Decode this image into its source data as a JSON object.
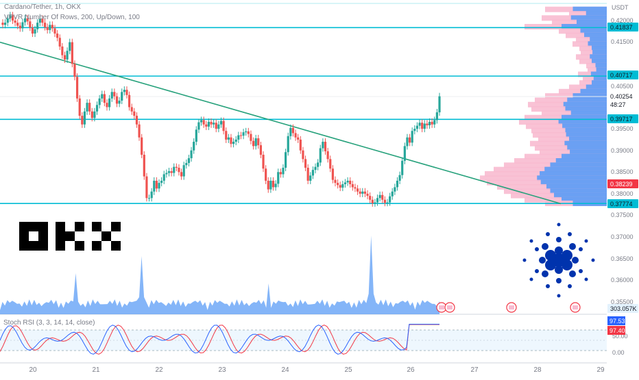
{
  "header": {
    "symbol_line": "Cardano/Tether, 1h, OKX",
    "vpvr_line": "VPVR Number Of Rows, 200, Up/Down, 100"
  },
  "brand": {
    "exchange_logo": "OKX",
    "coin_logo": "cardano-logo-icon"
  },
  "price_axis": {
    "currency": "USDT",
    "ticks": [
      "0.42000",
      "0.41500",
      "0.40500",
      "0.39500",
      "0.39000",
      "0.38500",
      "0.38000",
      "0.37500",
      "0.37000",
      "0.36500",
      "0.36000",
      "0.35500"
    ],
    "badges": [
      {
        "text": "0.41837",
        "kind": "level"
      },
      {
        "text": "0.40717",
        "kind": "level"
      },
      {
        "text": "0.40254",
        "kind": "last"
      },
      {
        "text": "48:27",
        "kind": "countdown"
      },
      {
        "text": "0.39717",
        "kind": "level"
      },
      {
        "text": "0.38239",
        "kind": "red"
      },
      {
        "text": "0.37774",
        "kind": "level"
      },
      {
        "text": "303.057K",
        "kind": "volume"
      }
    ]
  },
  "stoch_rsi": {
    "label": "Stoch RSI (3, 3, 14, 14, close)",
    "ticks": [
      "50.00",
      "0.00"
    ],
    "badges": [
      {
        "text": "97.53",
        "kind": "k"
      },
      {
        "text": "97.40",
        "kind": "d"
      }
    ]
  },
  "time_axis": {
    "ticks": [
      "20",
      "21",
      "22",
      "23",
      "24",
      "25",
      "26",
      "27",
      "28",
      "29"
    ]
  },
  "colors": {
    "up": "#26a69a",
    "down": "#ef5350",
    "level": "#00bcd4",
    "trend": "#26a17b",
    "vp_up": "#5b9cf6",
    "vp_down": "#f8bbd0",
    "stoch_k": "#2962ff",
    "stoch_d": "#f23645",
    "volume": "#5b9cf6",
    "cardano": "#0033ad"
  },
  "chart_data": {
    "type": "candlestick",
    "symbol": "Cardano/Tether",
    "interval": "1h",
    "exchange": "OKX",
    "y_axis": "USDT",
    "ylim": [
      0.3747,
      0.4225
    ],
    "x_ticks": [
      "20",
      "21",
      "22",
      "23",
      "24",
      "25",
      "26",
      "27",
      "28",
      "29"
    ],
    "horizontal_levels": [
      0.41837,
      0.40717,
      0.39717,
      0.37774
    ],
    "last_price": 0.40254,
    "trendline": [
      {
        "x": "19 21:00",
        "y": 0.415
      },
      {
        "x": "28 10:00",
        "y": 0.3777
      }
    ],
    "close_series": [
      0.419,
      0.4195,
      0.4205,
      0.4212,
      0.42,
      0.4195,
      0.4188,
      0.4182,
      0.4196,
      0.4205,
      0.4198,
      0.4184,
      0.417,
      0.418,
      0.4195,
      0.4204,
      0.4195,
      0.4185,
      0.4178,
      0.419,
      0.4182,
      0.417,
      0.416,
      0.414,
      0.412,
      0.411,
      0.413,
      0.415,
      0.41,
      0.407,
      0.402,
      0.398,
      0.396,
      0.399,
      0.401,
      0.399,
      0.3975,
      0.399,
      0.4005,
      0.402,
      0.403,
      0.401,
      0.4,
      0.402,
      0.4035,
      0.4025,
      0.4008,
      0.4015,
      0.4035,
      0.404,
      0.4028,
      0.4,
      0.399,
      0.398,
      0.396,
      0.393,
      0.389,
      0.384,
      0.379,
      0.379,
      0.3805,
      0.383,
      0.3812,
      0.3825,
      0.383,
      0.3845,
      0.3848,
      0.3852,
      0.3848,
      0.3862,
      0.386,
      0.385,
      0.384,
      0.3866,
      0.3871,
      0.3882,
      0.39,
      0.392,
      0.3948,
      0.3965,
      0.397,
      0.396,
      0.3955,
      0.3966,
      0.396,
      0.3964,
      0.395,
      0.396,
      0.3968,
      0.3945,
      0.3925,
      0.393,
      0.3915,
      0.392,
      0.3925,
      0.3935,
      0.3934,
      0.3942,
      0.3944,
      0.3938,
      0.3922,
      0.391,
      0.3928,
      0.3912,
      0.389,
      0.3858,
      0.383,
      0.381,
      0.383,
      0.3815,
      0.3823,
      0.385,
      0.3845,
      0.386,
      0.3896,
      0.3933,
      0.3952,
      0.394,
      0.393,
      0.3925,
      0.39,
      0.388,
      0.386,
      0.383,
      0.3842,
      0.3855,
      0.3862,
      0.3872,
      0.3905,
      0.392,
      0.3898,
      0.388,
      0.3858,
      0.3832,
      0.3825,
      0.382,
      0.3814,
      0.3822,
      0.3826,
      0.383,
      0.3822,
      0.3815,
      0.3812,
      0.3805,
      0.38,
      0.3805,
      0.38,
      0.3795,
      0.3786,
      0.3778,
      0.378,
      0.379,
      0.3797,
      0.3786,
      0.3779,
      0.378,
      0.3794,
      0.3805,
      0.3815,
      0.383,
      0.3843,
      0.3876,
      0.391,
      0.393,
      0.3918,
      0.3945,
      0.395,
      0.3957,
      0.3964,
      0.395,
      0.3962,
      0.3958,
      0.3966,
      0.396,
      0.397,
      0.3988,
      0.4025
    ],
    "volume_peaks": [
      {
        "day": "21",
        "value": "peak"
      },
      {
        "day": "25",
        "value": "peak"
      }
    ],
    "stoch_rsi": {
      "k": 97.53,
      "d": 97.4,
      "upper_band": 80,
      "lower_band": 20
    }
  }
}
